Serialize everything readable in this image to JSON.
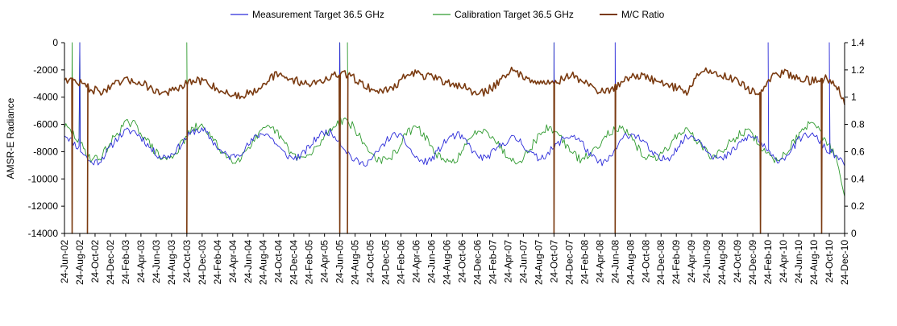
{
  "chart_data": {
    "type": "line",
    "title": "",
    "ylabel": "AMSR-E Radiance",
    "y2label": "",
    "ylim": [
      -14000,
      0
    ],
    "y_ticks": [
      0,
      -2000,
      -4000,
      -6000,
      -8000,
      -10000,
      -12000,
      -14000
    ],
    "y2lim": [
      0,
      1.4
    ],
    "y2_ticks": [
      0,
      0.2,
      0.4,
      0.6,
      0.8,
      1,
      1.2,
      1.4
    ],
    "x_tick_labels": [
      "24-Jun-02",
      "24-Aug-02",
      "24-Oct-02",
      "24-Dec-02",
      "24-Feb-03",
      "24-Apr-03",
      "24-Jun-03",
      "24-Aug-03",
      "24-Oct-03",
      "24-Dec-03",
      "24-Feb-04",
      "24-Apr-04",
      "24-Jun-04",
      "24-Aug-04",
      "24-Oct-04",
      "24-Dec-04",
      "24-Feb-05",
      "24-Apr-05",
      "24-Jun-05",
      "24-Aug-05",
      "24-Oct-05",
      "24-Dec-05",
      "24-Feb-06",
      "24-Apr-06",
      "24-Jun-06",
      "24-Aug-06",
      "24-Oct-06",
      "24-Dec-06",
      "24-Feb-07",
      "24-Apr-07",
      "24-Jun-07",
      "24-Aug-07",
      "24-Oct-07",
      "24-Dec-07",
      "24-Feb-08",
      "24-Apr-08",
      "24-Jun-08",
      "24-Aug-08",
      "24-Oct-08",
      "24-Dec-08",
      "24-Feb-09",
      "24-Apr-09",
      "24-Jun-09",
      "24-Aug-09",
      "24-Oct-09",
      "24-Dec-09",
      "24-Feb-10",
      "24-Apr-10",
      "24-Jun-10",
      "24-Aug-10",
      "24-Oct-10",
      "24-Dec-10"
    ],
    "legend_position": "top",
    "grid": false,
    "colors": {
      "measurement": "#2b2bd9",
      "calibration": "#2e9a2e",
      "ratio": "#7a3a10"
    },
    "series": [
      {
        "name": "Measurement Target 36.5 GHz",
        "axis": "left",
        "values": [
          -6700,
          -7300,
          -8000,
          -8800,
          -8700,
          -7900,
          -7000,
          -6500,
          -6500,
          -7100,
          -7900,
          -8400,
          -8300,
          -7700,
          -6900,
          -6400,
          -6500,
          -7300,
          -8100,
          -8400,
          -8100,
          -7500,
          -6800,
          -6600,
          -7300,
          -8100,
          -8500,
          -8300,
          -7600,
          -6800,
          -6500,
          -6900,
          -7800,
          -8600,
          -8900,
          -8600,
          -7800,
          -7000,
          -6700,
          -7400,
          -8400,
          -8800,
          -8500,
          -7600,
          -6900,
          -6800,
          -7400,
          -8300,
          -8500,
          -8000,
          -7400,
          -7000,
          -7200,
          -8000,
          -8500,
          -8200,
          -7600,
          -7000,
          -6800,
          -7300,
          -8300,
          -8800,
          -8700,
          -7700,
          -6800,
          -6700,
          -7200,
          -8100,
          -8600,
          -8400,
          -7600,
          -6900,
          -6900,
          -7600,
          -8300,
          -8600,
          -8100,
          -7400,
          -6900,
          -7000,
          -7800,
          -8600,
          -8500,
          -7800,
          -7000,
          -6700,
          -7100,
          -7900,
          -8300,
          -9000
        ],
        "dropouts": [
          {
            "x": "24-Aug-02",
            "value": 0
          },
          {
            "x": "24-Jun-05",
            "value": 0
          },
          {
            "x": "24-Oct-07",
            "value": 0
          },
          {
            "x": "24-Jun-08",
            "value": 0
          },
          {
            "x": "24-Feb-10",
            "value": 0
          },
          {
            "x": "24-Oct-10",
            "value": 0
          }
        ]
      },
      {
        "name": "Calibration Target 36.5 GHz",
        "axis": "left",
        "values": [
          -6100,
          -6700,
          -7600,
          -8500,
          -8500,
          -7600,
          -6600,
          -5900,
          -6000,
          -6800,
          -7700,
          -8500,
          -8500,
          -7800,
          -6800,
          -6200,
          -6200,
          -7200,
          -8000,
          -8600,
          -8500,
          -7600,
          -6900,
          -6300,
          -6400,
          -7300,
          -8200,
          -8500,
          -8300,
          -7500,
          -6600,
          -5900,
          -5600,
          -6200,
          -7300,
          -8100,
          -8700,
          -8600,
          -7800,
          -6700,
          -6200,
          -6700,
          -7800,
          -8600,
          -8900,
          -8300,
          -7400,
          -6500,
          -6300,
          -7000,
          -7900,
          -8600,
          -8600,
          -7900,
          -6900,
          -6300,
          -6400,
          -7300,
          -8200,
          -8600,
          -8200,
          -7400,
          -6600,
          -6300,
          -6500,
          -7400,
          -8200,
          -8600,
          -8300,
          -7500,
          -6700,
          -6400,
          -7000,
          -7900,
          -8400,
          -8000,
          -7300,
          -6700,
          -6500,
          -7200,
          -8100,
          -8600,
          -8300,
          -7400,
          -6600,
          -6000,
          -6400,
          -7400,
          -8200,
          -11500
        ],
        "dropouts": [
          {
            "x": "24-Jul-02",
            "value": 0
          },
          {
            "x": "24-Aug-02",
            "value": 0
          },
          {
            "x": "24-Oct-03",
            "value": 0
          },
          {
            "x": "24-Jun-05",
            "value": 0
          },
          {
            "x": "24-Jul-05",
            "value": 0
          },
          {
            "x": "24-Oct-07",
            "value": 0
          }
        ]
      },
      {
        "name": "M/C Ratio",
        "axis": "right",
        "values": [
          1.14,
          1.12,
          1.1,
          1.06,
          1.04,
          1.06,
          1.1,
          1.12,
          1.12,
          1.1,
          1.06,
          1.03,
          1.04,
          1.06,
          1.1,
          1.12,
          1.12,
          1.08,
          1.04,
          1.02,
          1.01,
          1.03,
          1.06,
          1.12,
          1.16,
          1.15,
          1.13,
          1.11,
          1.1,
          1.11,
          1.14,
          1.16,
          1.17,
          1.14,
          1.1,
          1.06,
          1.04,
          1.06,
          1.1,
          1.16,
          1.18,
          1.16,
          1.14,
          1.12,
          1.1,
          1.09,
          1.06,
          1.02,
          1.04,
          1.08,
          1.15,
          1.2,
          1.16,
          1.14,
          1.12,
          1.1,
          1.11,
          1.14,
          1.16,
          1.12,
          1.08,
          1.05,
          1.04,
          1.08,
          1.14,
          1.16,
          1.15,
          1.13,
          1.11,
          1.09,
          1.06,
          1.04,
          1.14,
          1.2,
          1.18,
          1.16,
          1.14,
          1.12,
          1.06,
          1.02,
          1.08,
          1.16,
          1.18,
          1.16,
          1.14,
          1.12,
          1.12,
          1.14,
          1.1,
          0.96
        ],
        "dropouts": [
          {
            "x": "24-Jul-02",
            "value": 0
          },
          {
            "x": "24-Sep-02",
            "value": 0
          },
          {
            "x": "24-Oct-03",
            "value": 0
          },
          {
            "x": "24-Jun-05",
            "value": 0
          },
          {
            "x": "24-Jul-05",
            "value": 0
          },
          {
            "x": "24-Oct-07",
            "value": 0
          },
          {
            "x": "24-Jun-08",
            "value": 0
          },
          {
            "x": "24-Jan-10",
            "value": 0
          },
          {
            "x": "24-Sep-10",
            "value": 0
          }
        ]
      }
    ]
  }
}
